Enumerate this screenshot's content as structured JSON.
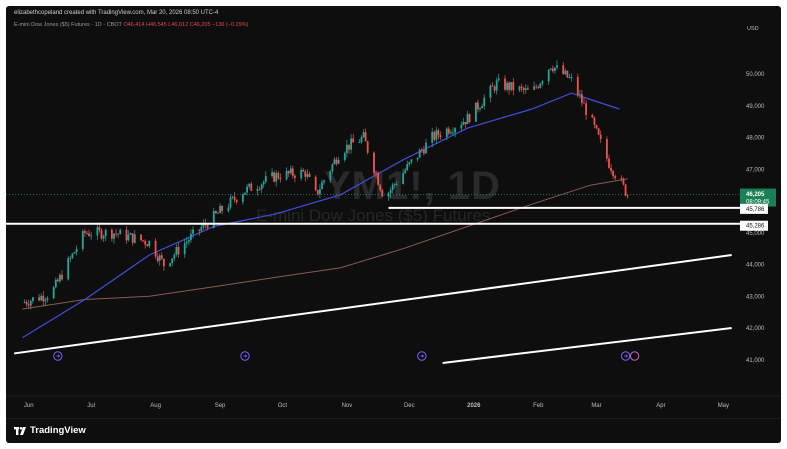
{
  "header": {
    "created_by": "elizabethcopeland created with TradingView.com, Mar 20, 2026 08:50 UTC-4"
  },
  "legend": {
    "symbol": "E-mini Dow Jones ($5) Futures · 1D · CBOT",
    "open": "O46,414",
    "high": "H46,545",
    "low": "L46,012",
    "close": "C46,205",
    "change": "−136 (−0.29%)"
  },
  "watermark": {
    "ticker": "YM1!, 1D",
    "name": "E-mini Dow Jones ($5) Futures"
  },
  "footer": {
    "brand": "TradingView"
  },
  "colors": {
    "up": "#26a69a",
    "down": "#ef5350",
    "sma_fast": "#3f4fd8",
    "sma_slow": "#8a5a50",
    "lines": "#ffffff",
    "event_icon": "#7b61ff"
  },
  "chart_data": {
    "type": "line",
    "title": "E-mini Dow Jones ($5) Futures · 1D · CBOT",
    "currency": "USD",
    "xlabel": "",
    "ylabel": "",
    "x_ticks": [
      "Jun",
      "Jul",
      "Aug",
      "Sep",
      "Oct",
      "Nov",
      "Dec",
      "2026",
      "Feb",
      "Mar",
      "Apr",
      "May"
    ],
    "y_ticks": [
      41000,
      42000,
      43000,
      44000,
      45000,
      46000,
      47000,
      48000,
      49000,
      50000
    ],
    "y_tick_labels": [
      "41,000",
      "42,000",
      "43,000",
      "44,000",
      "45,000",
      "46,000",
      "47,000",
      "48,000",
      "49,000",
      "50,000"
    ],
    "ylim": [
      40300,
      51200
    ],
    "grid": false,
    "price_label": {
      "value": 46205,
      "text": "46,205",
      "countdown": "08:09:45"
    },
    "levels": [
      {
        "value": 45786,
        "text": "45,786"
      },
      {
        "value": 45286,
        "text": "45,286"
      }
    ],
    "series": [
      {
        "name": "",
        "type": "price",
        "x": [
          "2025-06-01",
          "2025-06-15",
          "2025-07-01",
          "2025-07-15",
          "2025-08-01",
          "2025-08-08",
          "2025-08-20",
          "2025-09-01",
          "2025-09-15",
          "2025-10-01",
          "2025-10-15",
          "2025-10-20",
          "2025-11-01",
          "2025-11-12",
          "2025-11-22",
          "2025-12-01",
          "2025-12-15",
          "2026-01-01",
          "2026-01-15",
          "2026-02-01",
          "2026-02-10",
          "2026-02-20",
          "2026-03-01",
          "2026-03-10",
          "2026-03-19"
        ],
        "values": [
          42800,
          43100,
          45000,
          45000,
          44700,
          44000,
          44800,
          45500,
          46300,
          46800,
          46900,
          46200,
          47600,
          48000,
          46100,
          46900,
          48000,
          48600,
          49700,
          49400,
          50300,
          49800,
          48600,
          47200,
          46205
        ]
      },
      {
        "name": "",
        "type": "moving-average",
        "x": [
          "2025-06-01",
          "2025-07-01",
          "2025-08-01",
          "2025-09-01",
          "2025-10-01",
          "2025-11-01",
          "2025-12-01",
          "2026-01-01",
          "2026-02-01",
          "2026-02-20",
          "2026-03-01",
          "2026-03-15"
        ],
        "values": [
          41700,
          42900,
          44300,
          45200,
          45600,
          46200,
          47300,
          48300,
          48900,
          49400,
          49200,
          48900
        ]
      },
      {
        "name": "",
        "type": "moving-average",
        "x": [
          "2025-06-01",
          "2025-07-01",
          "2025-08-01",
          "2025-09-01",
          "2025-10-01",
          "2025-11-01",
          "2025-12-01",
          "2026-01-01",
          "2026-02-01",
          "2026-03-01",
          "2026-03-19"
        ],
        "values": [
          42600,
          42900,
          43000,
          43300,
          43600,
          43900,
          44500,
          45200,
          45900,
          46500,
          46700
        ]
      }
    ],
    "trendlines": [
      {
        "from": [
          "2025-05-28",
          41200
        ],
        "to": [
          "2026-05-08",
          44300
        ]
      },
      {
        "from": [
          "2025-12-20",
          40900
        ],
        "to": [
          "2026-05-08",
          42000
        ]
      }
    ],
    "event_markers": [
      "2025-06-18",
      "2025-09-16",
      "2025-12-10",
      "2026-03-18"
    ]
  }
}
